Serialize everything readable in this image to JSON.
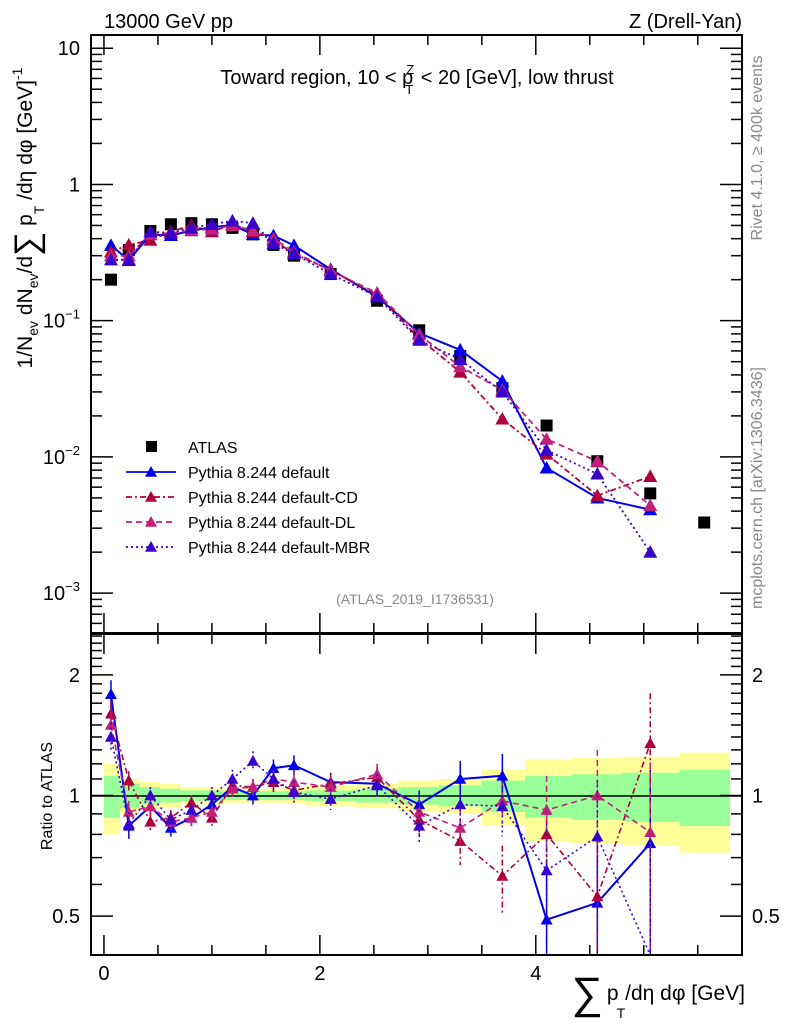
{
  "header": {
    "left": "13000 GeV pp",
    "right": "Z (Drell-Yan)"
  },
  "side_labels": {
    "rivet": "Rivet 4.1.0, ≥ 400k events",
    "mcplots": "mcplots.cern.ch [arXiv:1306.3436]"
  },
  "chart_data": [
    {
      "type": "line",
      "panel": "main",
      "title": "Toward region, 10 < p_T^Z < 20 [GeV], low thrust",
      "title_parts": {
        "pre": "Toward region, 10 < p",
        "sup": "Z",
        "sub": "T",
        "post": " < 20 [GeV], low thrust"
      },
      "ylabel": "1/N_ev dN_ev/d∑ p_T /dη dφ  [GeV]^-1",
      "ylabel_parts": {
        "a": "1/N",
        "a_sub": "ev",
        "b": " dN",
        "b_sub": "ev",
        "c": "/d",
        "sigma": "∑",
        "d": " p",
        "d_sub": "T",
        "e": " /dη dφ  [GeV]",
        "e_sup": "-1"
      },
      "yscale": "log",
      "ylim": [
        0.00051,
        12.5
      ],
      "xlim": [
        -0.12,
        5.91
      ],
      "ytick_labels": [
        {
          "value": 10,
          "base": "10",
          "exp": ""
        },
        {
          "value": 1,
          "base": "1",
          "exp": ""
        },
        {
          "value": 0.1,
          "base": "10",
          "exp": "−1"
        },
        {
          "value": 0.01,
          "base": "10",
          "exp": "−2"
        },
        {
          "value": 0.001,
          "base": "10",
          "exp": "−3"
        }
      ],
      "annotation": "(ATLAS_2019_I1736531)",
      "legend_position": "bottom-left",
      "x": [
        0.065,
        0.23,
        0.43,
        0.62,
        0.81,
        1.0,
        1.19,
        1.38,
        1.57,
        1.76,
        2.1,
        2.53,
        2.92,
        3.3,
        3.69,
        4.1,
        4.57,
        5.06,
        5.56
      ],
      "series": [
        {
          "name": "ATLAS",
          "style": "marker",
          "color": "#000000",
          "values": [
            0.2,
            0.33,
            0.455,
            0.51,
            0.52,
            0.51,
            0.48,
            0.43,
            0.36,
            0.3,
            0.22,
            0.14,
            0.085,
            0.055,
            0.032,
            0.017,
            0.0093,
            0.0054,
            0.0033
          ]
        },
        {
          "name": "Pythia 8.244 default",
          "style": "solid",
          "color": "#0000ee",
          "values": [
            0.358,
            0.277,
            0.428,
            0.423,
            0.458,
            0.485,
            0.504,
            0.43,
            0.421,
            0.357,
            0.238,
            0.15,
            0.081,
            0.061,
            0.036,
            0.0083,
            0.005,
            0.0041
          ]
        },
        {
          "name": "Pythia 8.244 default-CD",
          "style": "dashdot",
          "color": "#b0003a",
          "values": [
            0.32,
            0.36,
            0.39,
            0.45,
            0.5,
            0.45,
            0.51,
            0.45,
            0.39,
            0.31,
            0.235,
            0.155,
            0.074,
            0.042,
            0.019,
            0.0105,
            0.0052,
            0.0072
          ]
        },
        {
          "name": "Pythia 8.244 default-DL",
          "style": "dashed",
          "color": "#c0207a",
          "values": [
            0.3,
            0.3,
            0.43,
            0.44,
            0.46,
            0.47,
            0.5,
            0.46,
            0.4,
            0.32,
            0.232,
            0.16,
            0.079,
            0.046,
            0.031,
            0.0135,
            0.0093,
            0.0044
          ]
        },
        {
          "name": "Pythia 8.244 default-MBR",
          "style": "dotted",
          "color": "#3a00cc",
          "values": [
            0.28,
            0.28,
            0.45,
            0.44,
            0.48,
            0.51,
            0.54,
            0.52,
            0.37,
            0.31,
            0.22,
            0.15,
            0.072,
            0.052,
            0.03,
            0.0112,
            0.0075,
            0.002
          ]
        }
      ]
    },
    {
      "type": "line",
      "panel": "ratio",
      "ylabel": "Ratio to ATLAS",
      "yscale": "log",
      "ylim": [
        0.4,
        2.53
      ],
      "xlim": [
        -0.12,
        5.91
      ],
      "ytick_labels": [
        "2",
        "1",
        "0.5"
      ],
      "ytick_values": [
        2,
        1,
        0.5
      ],
      "xtick_labels": [
        "0",
        "2",
        "4"
      ],
      "xtick_values": [
        0,
        2,
        4
      ],
      "xlabel": "∑ p_T /dη dφ [GeV]",
      "xlabel_parts": {
        "sigma": "∑",
        "a": "p",
        "a_sub": "T",
        "b": "/dη dφ [GeV]"
      },
      "x_edges": [
        0.0,
        0.15,
        0.33,
        0.52,
        0.71,
        0.9,
        1.1,
        1.29,
        1.48,
        1.67,
        1.86,
        2.33,
        2.73,
        3.1,
        3.5,
        3.9,
        4.33,
        4.8,
        5.33,
        5.8
      ],
      "band_inner": [
        0.12,
        0.07,
        0.05,
        0.04,
        0.03,
        0.03,
        0.025,
        0.025,
        0.025,
        0.025,
        0.03,
        0.04,
        0.05,
        0.06,
        0.09,
        0.12,
        0.13,
        0.14,
        0.16
      ],
      "band_outer": [
        0.2,
        0.1,
        0.08,
        0.07,
        0.05,
        0.05,
        0.04,
        0.04,
        0.04,
        0.045,
        0.06,
        0.07,
        0.09,
        0.1,
        0.16,
        0.23,
        0.24,
        0.25,
        0.28
      ],
      "series": [
        {
          "name": "Pythia 8.244 default",
          "style": "solid",
          "color": "#0000ee",
          "values": [
            1.79,
            0.84,
            0.94,
            0.83,
            0.88,
            0.95,
            1.05,
            1.0,
            1.17,
            1.19,
            1.08,
            1.07,
            0.95,
            1.1,
            1.12,
            0.49,
            0.54,
            0.76
          ],
          "errors": [
            0.15,
            0.06,
            0.05,
            0.04,
            0.04,
            0.04,
            0.05,
            0.05,
            0.06,
            0.07,
            0.06,
            0.07,
            0.08,
            0.12,
            0.15,
            0.2,
            0.25,
            0.4
          ]
        },
        {
          "name": "Pythia 8.244 default-CD",
          "style": "dashdot",
          "color": "#b0003a",
          "values": [
            1.6,
            1.09,
            0.86,
            0.88,
            0.96,
            0.88,
            1.06,
            1.05,
            1.08,
            1.03,
            1.07,
            1.11,
            0.87,
            0.77,
            0.63,
            0.8,
            0.56,
            1.35
          ],
          "errors": [
            0.12,
            0.06,
            0.04,
            0.04,
            0.04,
            0.04,
            0.05,
            0.05,
            0.06,
            0.07,
            0.06,
            0.07,
            0.08,
            0.1,
            0.12,
            0.15,
            0.25,
            0.45
          ]
        },
        {
          "name": "Pythia 8.244 default-DL",
          "style": "dashed",
          "color": "#c0207a",
          "values": [
            1.5,
            0.91,
            0.94,
            0.86,
            0.88,
            0.91,
            1.04,
            1.05,
            1.1,
            1.08,
            1.05,
            1.13,
            0.91,
            0.83,
            0.97,
            0.92,
            1.0,
            0.81
          ],
          "errors": [
            0.12,
            0.06,
            0.04,
            0.04,
            0.04,
            0.04,
            0.05,
            0.05,
            0.06,
            0.07,
            0.06,
            0.07,
            0.08,
            0.1,
            0.12,
            0.2,
            0.3,
            0.4
          ]
        },
        {
          "name": "Pythia 8.244 default-MBR",
          "style": "dotted",
          "color": "#3a00cc",
          "values": [
            1.4,
            0.85,
            1.0,
            0.87,
            0.92,
            1.0,
            1.1,
            1.22,
            1.1,
            1.02,
            0.98,
            1.06,
            0.84,
            0.95,
            0.94,
            0.65,
            0.79,
            0.38
          ],
          "errors": [
            0.12,
            0.06,
            0.05,
            0.04,
            0.04,
            0.05,
            0.06,
            0.07,
            0.07,
            0.07,
            0.06,
            0.07,
            0.08,
            0.12,
            0.15,
            0.2,
            0.3,
            0.4
          ]
        }
      ]
    }
  ]
}
